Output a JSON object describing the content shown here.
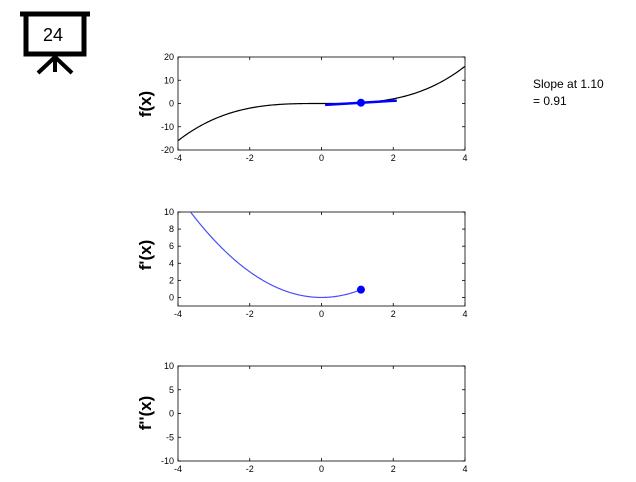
{
  "badge": {
    "number": "24",
    "icon": "presentation-board-icon"
  },
  "slope_annotation": {
    "line1": "Slope at 1.10",
    "line2": "= 0.91"
  },
  "colors": {
    "f_curve": "#000000",
    "tangent": "#0000ff",
    "derivative_curve": "#4c4cff",
    "point": "#0000ff"
  },
  "chart_data": [
    {
      "type": "line",
      "ylabel": "f(x)",
      "xlim": [
        -4,
        4
      ],
      "ylim": [
        -20,
        20
      ],
      "x_ticks": [
        "-4",
        "-2",
        "0",
        "2",
        "4"
      ],
      "y_ticks": [
        "20",
        "10",
        "0",
        "-10",
        "-20"
      ],
      "series": [
        {
          "function": "x^3/4",
          "x_range": [
            -4,
            4
          ]
        },
        {
          "tangent_at_x": 1.1,
          "slope": 0.91,
          "x_range": [
            0.1,
            2.1
          ]
        }
      ],
      "point": {
        "x": 1.1,
        "y": 0.33
      },
      "grid": false
    },
    {
      "type": "line",
      "ylabel": "f'(x)",
      "xlim": [
        -4,
        4
      ],
      "ylim": [
        -1,
        10
      ],
      "x_ticks": [
        "-4",
        "-2",
        "0",
        "2",
        "4"
      ],
      "y_ticks": [
        "10",
        "8",
        "6",
        "4",
        "2",
        "0"
      ],
      "series": [
        {
          "function": "3x^2/4",
          "x_range": [
            -4,
            1.1
          ]
        }
      ],
      "point": {
        "x": 1.1,
        "y": 0.91
      },
      "grid": false
    },
    {
      "type": "line",
      "ylabel": "f''(x)",
      "xlim": [
        -4,
        4
      ],
      "ylim": [
        -10,
        10
      ],
      "x_ticks": [
        "-4",
        "-2",
        "0",
        "2",
        "4"
      ],
      "y_ticks": [
        "10",
        "5",
        "0",
        "-5",
        "-10"
      ],
      "series": [],
      "grid": false
    }
  ]
}
